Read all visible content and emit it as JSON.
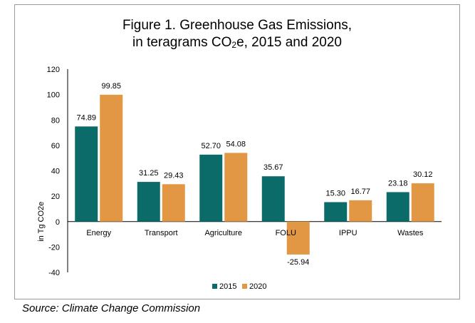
{
  "chart_data": {
    "type": "bar",
    "title_line1": "Figure 1. Greenhouse Gas Emissions,",
    "title_line2_pre": "in teragrams CO",
    "title_line2_sub": "2",
    "title_line2_post": "e, 2015 and 2020",
    "ylabel": "in Tg CO2e",
    "xlabel": "",
    "ylim": [
      -40,
      120
    ],
    "yticks": [
      -40,
      -20,
      0,
      20,
      40,
      60,
      80,
      100,
      120
    ],
    "ytick_labels": [
      "-40",
      "-20",
      "0",
      "20",
      "40",
      "60",
      "80",
      "100",
      "120"
    ],
    "categories": [
      "Energy",
      "Transport",
      "Agriculture",
      "FOLU",
      "IPPU",
      "Wastes"
    ],
    "series": [
      {
        "name": "2015",
        "color": "#0b6b68",
        "values": [
          74.89,
          31.25,
          52.7,
          35.67,
          15.3,
          23.18
        ],
        "labels": [
          "74.89",
          "31.25",
          "52.70",
          "35.67",
          "15.30",
          "23.18"
        ]
      },
      {
        "name": "2020",
        "color": "#e19743",
        "values": [
          99.85,
          29.43,
          54.08,
          -25.94,
          16.77,
          30.12
        ],
        "labels": [
          "99.85",
          "29.43",
          "54.08",
          "-25.94",
          "16.77",
          "30.12"
        ]
      }
    ],
    "legend_position": "bottom-center",
    "grid": false
  },
  "source": "Source: Climate Change Commission"
}
